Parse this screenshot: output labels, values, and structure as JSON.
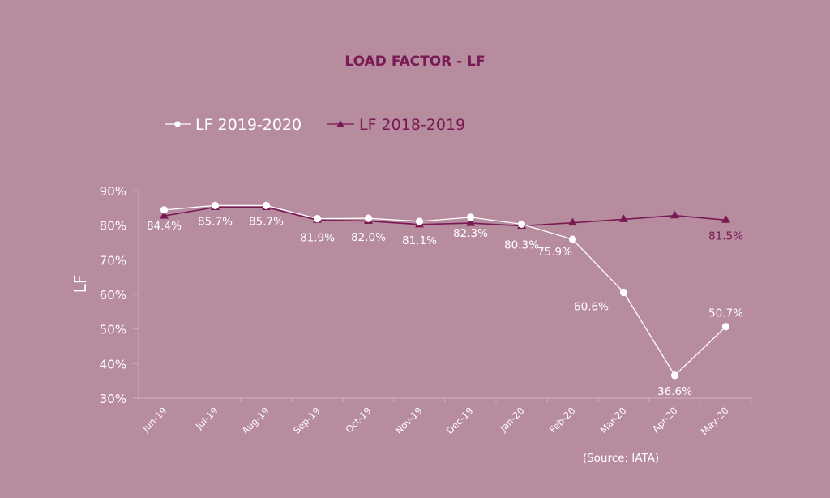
{
  "chart_data": {
    "type": "line",
    "title": "LOAD FACTOR - LF",
    "xlabel": "",
    "ylabel": "LF",
    "ylim": [
      30,
      90
    ],
    "yticks": [
      90,
      80,
      70,
      60,
      50,
      40,
      30
    ],
    "ytick_labels": [
      "90%",
      "80%",
      "70%",
      "60%",
      "50%",
      "40%",
      "30%"
    ],
    "categories": [
      "Jun-19",
      "Jul-19",
      "Aug-19",
      "Sep-19",
      "Oct-19",
      "Nov-19",
      "Dec-19",
      "Jan-20",
      "Feb-20",
      "Mar-20",
      "Apr-20",
      "May-20"
    ],
    "grid": false,
    "legend_position": "top-left",
    "series": [
      {
        "name": "LF 2019-2020",
        "marker": "circle",
        "color": "#ffffff",
        "values": [
          84.4,
          85.7,
          85.7,
          81.9,
          82.0,
          81.1,
          82.3,
          80.3,
          75.9,
          60.6,
          36.6,
          50.7
        ],
        "labels": [
          "84.4%",
          "85.7%",
          "85.7%",
          "81.9%",
          "82.0%",
          "81.1%",
          "82.3%",
          "80.3%",
          "75.9%",
          "60.6%",
          "36.6%",
          "50.7%"
        ]
      },
      {
        "name": "LF 2018-2019",
        "marker": "triangle",
        "color": "#7a1a55",
        "values": [
          82.7,
          85.2,
          85.2,
          81.5,
          81.2,
          80.2,
          80.6,
          79.8,
          80.7,
          81.7,
          82.8,
          81.5
        ],
        "labels": [
          "",
          "",
          "",
          "",
          "",
          "",
          "",
          "",
          "",
          "",
          "",
          "81.5%"
        ]
      }
    ],
    "annotations": [
      "(Source: IATA)"
    ]
  },
  "colors": {
    "background": "#b78c9e",
    "accent": "#7a1a55",
    "white": "#ffffff",
    "axis": "#cfb0bd"
  }
}
